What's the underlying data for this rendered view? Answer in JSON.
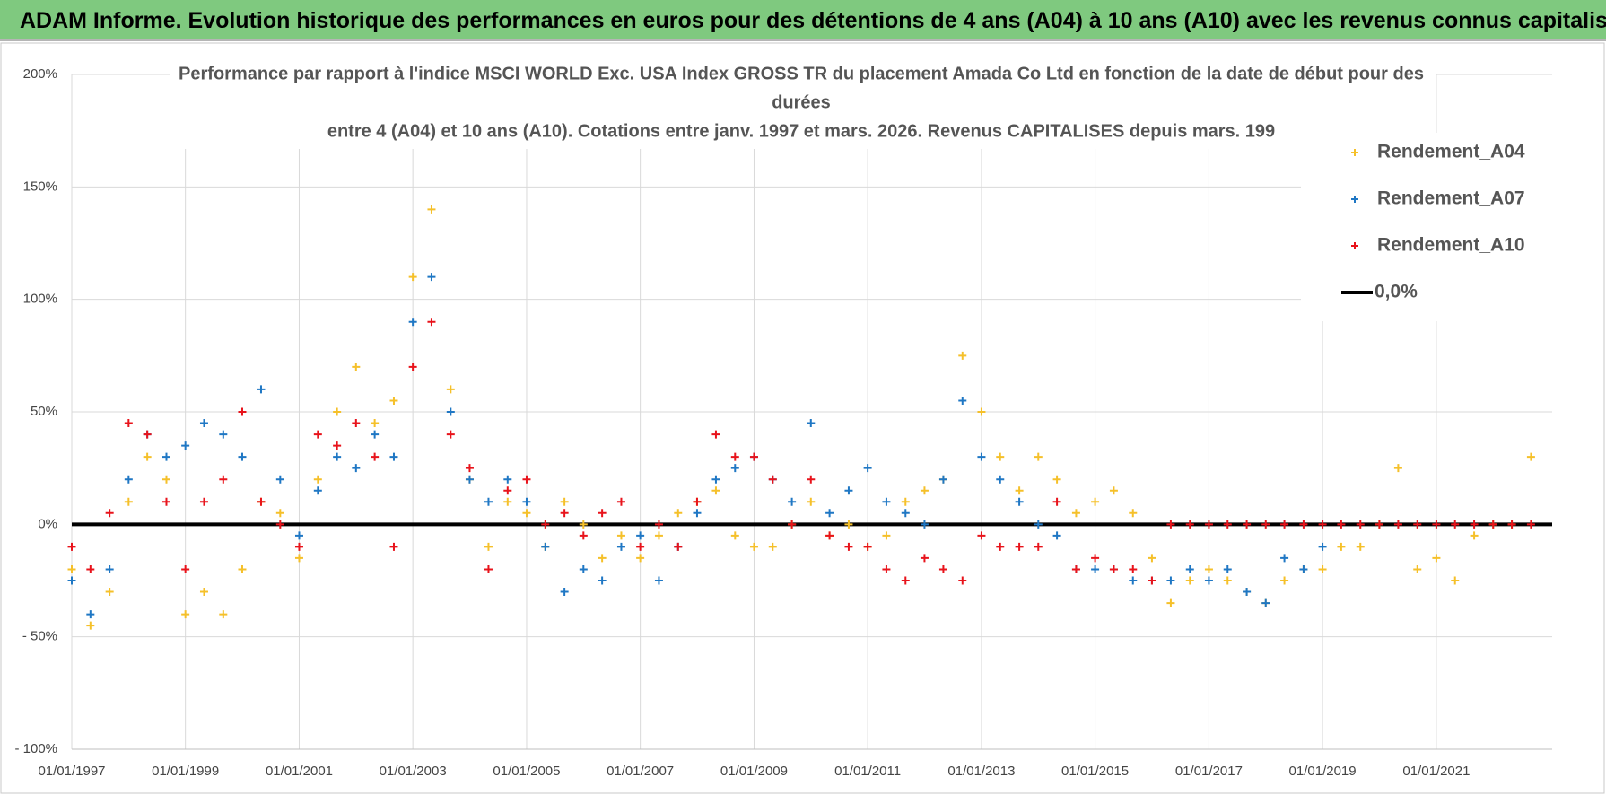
{
  "header": {
    "title": "ADAM Informe. Evolution historique des performances en euros pour des détentions de 4 ans (A04) à 10 ans (A10) avec les revenus connus capitalisés"
  },
  "chart_data": {
    "type": "scatter",
    "title": [
      "Performance par rapport à l'indice MSCI WORLD Exc. USA Index GROSS TR  du placement Amada Co Ltd en fonction de la date de début pour des",
      "durées",
      "entre 4 (A04) et 10 ans (A10).  Cotations entre janv. 1997 et mars. 2026.  Revenus CAPITALISES depuis mars. 199"
    ],
    "xlim": [
      "1997-01-01",
      "2023-01-15"
    ],
    "xticks": [
      {
        "value": "1997-01-01",
        "label": "01/01/1997"
      },
      {
        "value": "1999-01-01",
        "label": "01/01/1999"
      },
      {
        "value": "2001-01-01",
        "label": "01/01/2001"
      },
      {
        "value": "2003-01-01",
        "label": "01/01/2003"
      },
      {
        "value": "2005-01-01",
        "label": "01/01/2005"
      },
      {
        "value": "2007-01-01",
        "label": "01/01/2007"
      },
      {
        "value": "2009-01-01",
        "label": "01/01/2009"
      },
      {
        "value": "2011-01-01",
        "label": "01/01/2011"
      },
      {
        "value": "2013-01-01",
        "label": "01/01/2013"
      },
      {
        "value": "2015-01-01",
        "label": "01/01/2015"
      },
      {
        "value": "2017-01-01",
        "label": "01/01/2017"
      },
      {
        "value": "2019-01-01",
        "label": "01/01/2019"
      },
      {
        "value": "2021-01-01",
        "label": "01/01/2021"
      }
    ],
    "ylim": [
      -100,
      200
    ],
    "yticks": [
      {
        "value": -100,
        "label": "- 100%"
      },
      {
        "value": -50,
        "label": "- 50%"
      },
      {
        "value": 0,
        "label": "0%"
      },
      {
        "value": 50,
        "label": "50%"
      },
      {
        "value": 100,
        "label": "100%"
      },
      {
        "value": 150,
        "label": "150%"
      },
      {
        "value": 200,
        "label": "200%"
      }
    ],
    "grid": true,
    "legend": "upper right",
    "series": [
      {
        "name": "Rendement_A04",
        "type": "scatter",
        "color": "#f5c02a",
        "x": [
          "1997-01-01",
          "1997-05-01",
          "1997-09-01",
          "1998-01-01",
          "1998-05-01",
          "1998-09-01",
          "1999-01-01",
          "1999-05-01",
          "1999-09-01",
          "2000-01-01",
          "2000-05-01",
          "2000-09-01",
          "2001-01-01",
          "2001-05-01",
          "2001-09-01",
          "2002-01-01",
          "2002-05-01",
          "2002-09-01",
          "2003-01-01",
          "2003-05-01",
          "2003-09-01",
          "2004-01-01",
          "2004-05-01",
          "2004-09-01",
          "2005-01-01",
          "2005-05-01",
          "2005-09-01",
          "2006-01-01",
          "2006-05-01",
          "2006-09-01",
          "2007-01-01",
          "2007-05-01",
          "2007-09-01",
          "2008-01-01",
          "2008-05-01",
          "2008-09-01",
          "2009-01-01",
          "2009-05-01",
          "2009-09-01",
          "2010-01-01",
          "2010-05-01",
          "2010-09-01",
          "2011-01-01",
          "2011-05-01",
          "2011-09-01",
          "2012-01-01",
          "2012-05-01",
          "2012-09-01",
          "2013-01-01",
          "2013-05-01",
          "2013-09-01",
          "2014-01-01",
          "2014-05-01",
          "2014-09-01",
          "2015-01-01",
          "2015-05-01",
          "2015-09-01",
          "2016-01-01",
          "2016-05-01",
          "2016-09-01",
          "2017-01-01",
          "2017-05-01",
          "2017-09-01",
          "2018-01-01",
          "2018-05-01",
          "2018-09-01",
          "2019-01-01",
          "2019-05-01",
          "2019-09-01",
          "2020-01-01",
          "2020-05-01",
          "2020-09-01",
          "2021-01-01",
          "2021-05-01",
          "2021-09-01",
          "2022-01-01",
          "2022-05-01",
          "2022-09-01"
        ],
        "values": [
          -20,
          -45,
          -30,
          10,
          30,
          20,
          -40,
          -30,
          -40,
          -20,
          10,
          5,
          -15,
          20,
          50,
          70,
          45,
          55,
          110,
          140,
          60,
          20,
          -10,
          10,
          5,
          -10,
          10,
          0,
          -15,
          -5,
          -15,
          -5,
          5,
          10,
          15,
          -5,
          -10,
          -10,
          0,
          10,
          -5,
          0,
          -10,
          -5,
          10,
          15,
          20,
          75,
          50,
          30,
          15,
          30,
          20,
          5,
          10,
          15,
          5,
          -15,
          -35,
          -25,
          -20,
          -25,
          -30,
          -35,
          -25,
          -20,
          -20,
          -10,
          -10,
          0,
          25,
          -20,
          -15,
          -25,
          -5,
          0,
          0,
          30
        ]
      },
      {
        "name": "Rendement_A07",
        "type": "scatter",
        "color": "#1f77c4",
        "x": [
          "1997-01-01",
          "1997-05-01",
          "1997-09-01",
          "1998-01-01",
          "1998-05-01",
          "1998-09-01",
          "1999-01-01",
          "1999-05-01",
          "1999-09-01",
          "2000-01-01",
          "2000-05-01",
          "2000-09-01",
          "2001-01-01",
          "2001-05-01",
          "2001-09-01",
          "2002-01-01",
          "2002-05-01",
          "2002-09-01",
          "2003-01-01",
          "2003-05-01",
          "2003-09-01",
          "2004-01-01",
          "2004-05-01",
          "2004-09-01",
          "2005-01-01",
          "2005-05-01",
          "2005-09-01",
          "2006-01-01",
          "2006-05-01",
          "2006-09-01",
          "2007-01-01",
          "2007-05-01",
          "2007-09-01",
          "2008-01-01",
          "2008-05-01",
          "2008-09-01",
          "2009-01-01",
          "2009-05-01",
          "2009-09-01",
          "2010-01-01",
          "2010-05-01",
          "2010-09-01",
          "2011-01-01",
          "2011-05-01",
          "2011-09-01",
          "2012-01-01",
          "2012-05-01",
          "2012-09-01",
          "2013-01-01",
          "2013-05-01",
          "2013-09-01",
          "2014-01-01",
          "2014-05-01",
          "2014-09-01",
          "2015-01-01",
          "2015-05-01",
          "2015-09-01",
          "2016-01-01",
          "2016-05-01",
          "2016-09-01",
          "2017-01-01",
          "2017-05-01",
          "2017-09-01",
          "2018-01-01",
          "2018-05-01",
          "2018-09-01",
          "2019-01-01"
        ],
        "values": [
          -25,
          -40,
          -20,
          20,
          40,
          30,
          35,
          45,
          40,
          30,
          60,
          20,
          -5,
          15,
          30,
          25,
          40,
          30,
          90,
          110,
          50,
          20,
          10,
          20,
          10,
          -10,
          -30,
          -20,
          -25,
          -10,
          -5,
          -25,
          -10,
          5,
          20,
          25,
          30,
          20,
          10,
          45,
          5,
          15,
          25,
          10,
          5,
          0,
          20,
          55,
          30,
          20,
          10,
          0,
          -5,
          -20,
          -20,
          -20,
          -25,
          -25,
          -25,
          -20,
          -25,
          -20,
          -30,
          -35,
          -15,
          -20,
          -10
        ]
      },
      {
        "name": "Rendement_A10",
        "type": "scatter",
        "color": "#e8131b",
        "x": [
          "1997-01-01",
          "1997-05-01",
          "1997-09-01",
          "1998-01-01",
          "1998-05-01",
          "1998-09-01",
          "1999-01-01",
          "1999-05-01",
          "1999-09-01",
          "2000-01-01",
          "2000-05-01",
          "2000-09-01",
          "2001-01-01",
          "2001-05-01",
          "2001-09-01",
          "2002-01-01",
          "2002-05-01",
          "2002-09-01",
          "2003-01-01",
          "2003-05-01",
          "2003-09-01",
          "2004-01-01",
          "2004-05-01",
          "2004-09-01",
          "2005-01-01",
          "2005-05-01",
          "2005-09-01",
          "2006-01-01",
          "2006-05-01",
          "2006-09-01",
          "2007-01-01",
          "2007-05-01",
          "2007-09-01",
          "2008-01-01",
          "2008-05-01",
          "2008-09-01",
          "2009-01-01",
          "2009-05-01",
          "2009-09-01",
          "2010-01-01",
          "2010-05-01",
          "2010-09-01",
          "2011-01-01",
          "2011-05-01",
          "2011-09-01",
          "2012-01-01",
          "2012-05-01",
          "2012-09-01",
          "2013-01-01",
          "2013-05-01",
          "2013-09-01",
          "2014-01-01",
          "2014-05-01",
          "2014-09-01",
          "2015-01-01",
          "2015-05-01",
          "2015-09-01",
          "2016-01-01",
          "2016-05-01",
          "2016-09-01",
          "2017-01-01",
          "2017-05-01",
          "2017-09-01",
          "2018-01-01",
          "2018-05-01",
          "2018-09-01",
          "2019-01-01",
          "2019-05-01",
          "2019-09-01",
          "2020-01-01",
          "2020-05-01",
          "2020-09-01",
          "2021-01-01",
          "2021-05-01",
          "2021-09-01",
          "2022-01-01",
          "2022-05-01",
          "2022-09-01"
        ],
        "values": [
          -10,
          -20,
          5,
          45,
          40,
          10,
          -20,
          10,
          20,
          50,
          10,
          0,
          -10,
          40,
          35,
          45,
          30,
          -10,
          70,
          90,
          40,
          25,
          -20,
          15,
          20,
          0,
          5,
          -5,
          5,
          10,
          -10,
          0,
          -10,
          10,
          40,
          30,
          30,
          20,
          0,
          20,
          -5,
          -10,
          -10,
          -20,
          -25,
          -15,
          -20,
          -25,
          -5,
          -10,
          -10,
          -10,
          10,
          -20,
          -15,
          -20,
          -20,
          -25,
          0,
          0,
          0,
          0,
          0,
          0,
          0,
          0,
          0,
          0,
          0,
          0,
          0,
          0,
          0,
          0,
          0,
          0,
          0,
          0
        ]
      },
      {
        "name": "0,0%",
        "type": "line",
        "color": "#000000",
        "x": [
          "1997-01-01",
          "2023-01-15"
        ],
        "values": [
          0,
          0
        ]
      }
    ]
  }
}
